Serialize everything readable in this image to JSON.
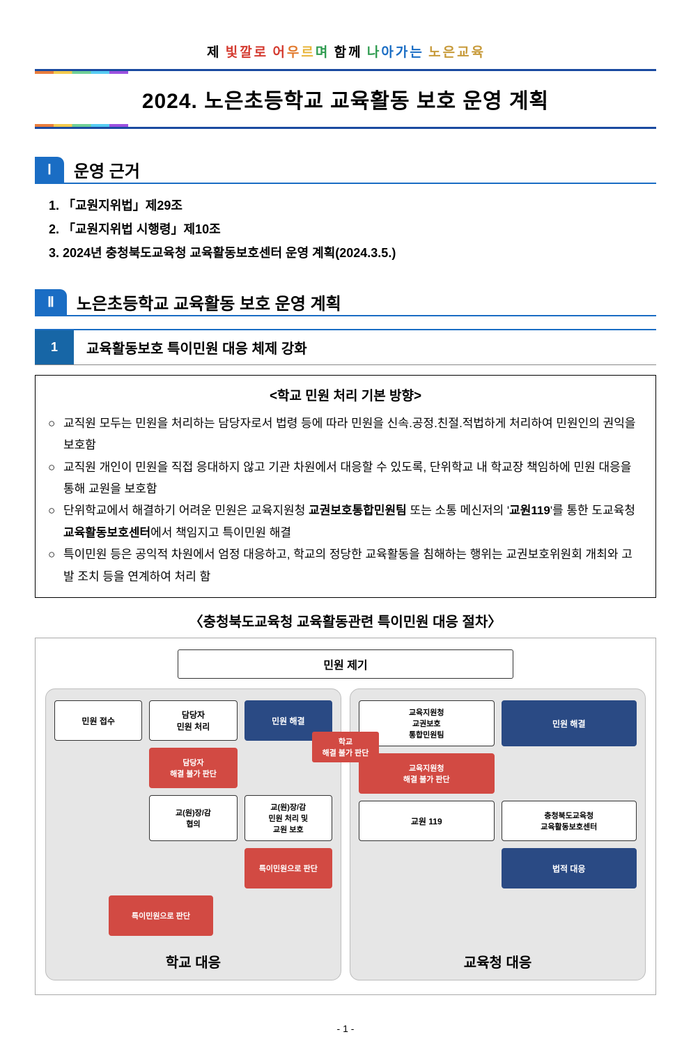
{
  "slogan": {
    "parts": [
      {
        "t": "제 ",
        "c": "#000000"
      },
      {
        "t": "빛",
        "c": "#d43a2f"
      },
      {
        "t": "깔",
        "c": "#d43a2f"
      },
      {
        "t": "로 ",
        "c": "#d43a2f"
      },
      {
        "t": "어",
        "c": "#d43a2f"
      },
      {
        "t": "우",
        "c": "#e27a2e"
      },
      {
        "t": "르",
        "c": "#e8b53a"
      },
      {
        "t": "며 ",
        "c": "#2e9b4f"
      },
      {
        "t": "함",
        "c": "#000000"
      },
      {
        "t": "께 ",
        "c": "#000000"
      },
      {
        "t": "나",
        "c": "#2e9b4f"
      },
      {
        "t": "아",
        "c": "#1a6dc4"
      },
      {
        "t": "가",
        "c": "#1a6dc4"
      },
      {
        "t": "는 ",
        "c": "#1a6dc4"
      },
      {
        "t": "노",
        "c": "#c79a3a"
      },
      {
        "t": "은",
        "c": "#c79a3a"
      },
      {
        "t": "교",
        "c": "#c79a3a"
      },
      {
        "t": "육",
        "c": "#c79a3a"
      }
    ]
  },
  "main_title": "2024. 노은초등학교 교육활동 보호 운영 계획",
  "section1": {
    "num": "Ⅰ",
    "title": "운영 근거",
    "items": [
      "1. 「교원지위법」제29조",
      "2. 「교원지위법 시행령」제10조",
      "3. 2024년 충청북도교육청 교육활동보호센터 운영 계획(2024.3.5.)"
    ]
  },
  "section2": {
    "num": "Ⅱ",
    "title": "노은초등학교 교육활동 보호 운영 계획"
  },
  "sub1": {
    "num": "1",
    "title": "교육활동보호 특이민원 대응 체제 강화"
  },
  "box": {
    "title": "<학교 민원 처리 기본 방향>",
    "items": [
      "교직원 모두는 민원을 처리하는 담당자로서 법령 등에 따라 민원을 신속.공정.친절.적법하게 처리하여 민원인의 권익을 보호함",
      "교직원 개인이 민원을 직접 응대하지 않고 기관 차원에서 대응할 수 있도록, 단위학교 내 학교장 책임하에 민원 대응을 통해 교원을 보호함",
      "단위학교에서 해결하기 어려운 민원은 교육지원청 교권보호통합민원팀 또는 소통 메신저의 '교원119'를 통한 도교육청 교육활동보호센터에서 책임지고 특이민원 해결",
      "특이민원 등은 공익적 차원에서 엄정 대응하고, 학교의 정당한 교육활동을 침해하는 행위는 교권보호위원회 개최와 고발 조치 등을 연계하여 처리 함"
    ],
    "bold_in_item3": [
      "교권보호통합민원팀",
      "교원119",
      "교육활동보호센터"
    ]
  },
  "flow": {
    "title": "〈충청북도교육청 교육활동관련 특이민원 대응 절차〉",
    "raise": "민원 제기",
    "center_red": "학교\n해결 불가 판단",
    "left": {
      "label": "학교 대응",
      "row1": [
        "민원 접수",
        "담당자\n민원 처리",
        "민원 해결"
      ],
      "red1": "담당자\n해결 불가 판단",
      "row2": [
        "교(원)장/감\n협의",
        "교(원)장/감\n민원 처리 및\n교원 보호"
      ],
      "red2": "특이민원으로 판단",
      "red3": "특이민원으로 판단"
    },
    "right": {
      "label": "교육청 대응",
      "row1": [
        "교육지원청\n교권보호\n통합민원팀",
        "민원 해결"
      ],
      "red1": "교육지원청\n해결 불가 판단",
      "row2": [
        "교원 119",
        "충청북도교육청\n교육활동보호센터"
      ],
      "navy2": "법적 대응"
    }
  },
  "page_num": "- 1 -",
  "colors": {
    "blue": "#1a6dc4",
    "navy": "#2a4a84",
    "red": "#d24a43",
    "panel_bg": "#e6e6e6"
  }
}
